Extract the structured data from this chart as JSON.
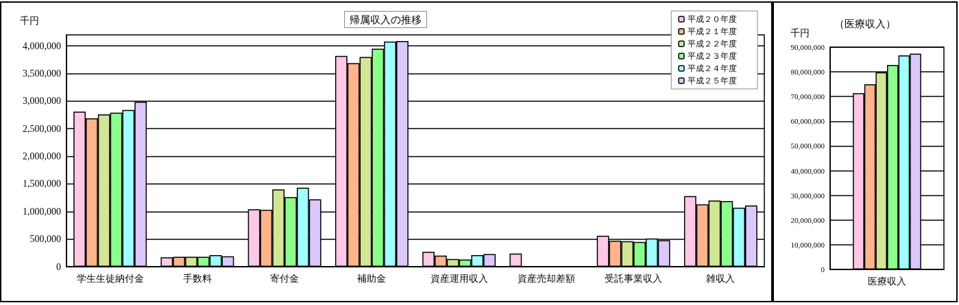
{
  "chart_data": [
    {
      "type": "bar",
      "title": "帰属収入の推移",
      "ylabel": "千円",
      "categories": [
        "学生生徒納付金",
        "手数料",
        "寄付金",
        "補助金",
        "資産運用収入",
        "資産売却差額",
        "受託事業収入",
        "雑収入"
      ],
      "series": [
        {
          "name": "平成２０年度",
          "color": "#ffc8e6",
          "values": [
            2810000,
            170000,
            1040000,
            3820000,
            270000,
            240000,
            560000,
            1280000
          ]
        },
        {
          "name": "平成２１年度",
          "color": "#ffb48c",
          "values": [
            2690000,
            180000,
            1030000,
            3690000,
            200000,
            null,
            470000,
            1130000
          ]
        },
        {
          "name": "平成２２年度",
          "color": "#d2e696",
          "values": [
            2760000,
            180000,
            1400000,
            3800000,
            140000,
            null,
            460000,
            1200000
          ]
        },
        {
          "name": "平成２３年度",
          "color": "#8cff8c",
          "values": [
            2790000,
            180000,
            1260000,
            3950000,
            130000,
            null,
            450000,
            1190000
          ]
        },
        {
          "name": "平成２４年度",
          "color": "#a0ffff",
          "values": [
            2840000,
            210000,
            1430000,
            4080000,
            210000,
            null,
            510000,
            1070000
          ]
        },
        {
          "name": "平成２５年度",
          "color": "#dcc8ff",
          "values": [
            2990000,
            190000,
            1220000,
            4090000,
            230000,
            null,
            480000,
            1110000
          ]
        }
      ],
      "ylim": [
        0,
        4200000
      ],
      "yticks": [
        0,
        {
          "value": 500000,
          "label": "500,000"
        },
        {
          "value": 1000000,
          "label": "1,000,000"
        },
        {
          "value": 1500000,
          "label": "1,500,000"
        },
        {
          "value": 2000000,
          "label": "2,000,000"
        },
        {
          "value": 2500000,
          "label": "2,500,000"
        },
        {
          "value": 3000000,
          "label": "3,000,000"
        },
        {
          "value": 3500000,
          "label": "3,500,000"
        },
        {
          "value": 4000000,
          "label": "4,000,000"
        }
      ],
      "grid": "y",
      "legend": "top right"
    },
    {
      "type": "bar",
      "title": "（医療収入）",
      "ylabel": "千円",
      "categories": [
        "医療収入"
      ],
      "series": [
        {
          "color": "#ffc8e6",
          "values": [
            71400000
          ]
        },
        {
          "color": "#ffb48c",
          "values": [
            75000000
          ]
        },
        {
          "color": "#d2e696",
          "values": [
            79800000
          ]
        },
        {
          "color": "#8cff8c",
          "values": [
            82800000
          ]
        },
        {
          "color": "#a0ffff",
          "values": [
            86700000
          ]
        },
        {
          "color": "#dcc8ff",
          "values": [
            87400000
          ]
        }
      ],
      "ylim": [
        0,
        90000000
      ],
      "yticks": [
        0,
        {
          "value": 10000000,
          "label": "10,000,000"
        },
        {
          "value": 20000000,
          "label": "20,000,000"
        },
        {
          "value": 30000000,
          "label": "30,000,000"
        },
        {
          "value": 40000000,
          "label": "40,000,000"
        },
        {
          "value": 50000000,
          "label": "50,000,000"
        },
        {
          "value": 60000000,
          "label": "60,000,000"
        },
        {
          "value": 70000000,
          "label": "70,000,000"
        },
        {
          "value": 80000000,
          "label": "80,000,000"
        },
        {
          "value": 90000000,
          "label": "90,000,000"
        }
      ],
      "grid": "y"
    }
  ]
}
